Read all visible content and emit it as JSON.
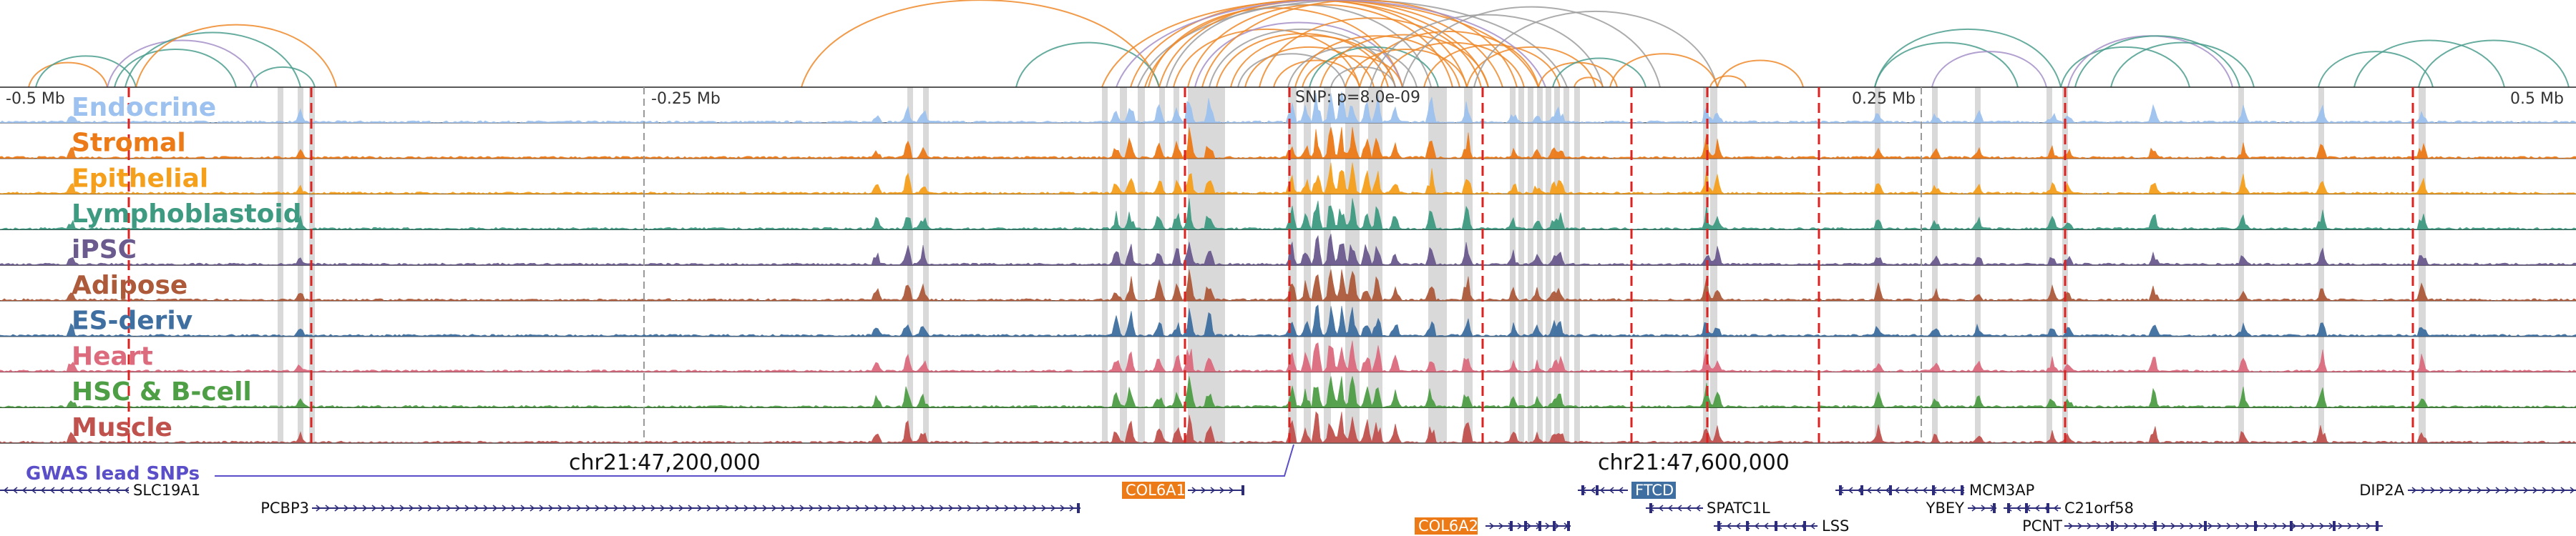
{
  "scale_labels": [
    "-0.5 Mb",
    "-0.25 Mb",
    "0.25 Mb",
    "0.5 Mb"
  ],
  "snp_label": "SNP: p=8.0e-09",
  "coordinate_labels": [
    "chr21:47,200,000",
    "chr21:47,600,000"
  ],
  "gwas_label": "GWAS lead SNPs",
  "tracks": [
    {
      "name": "Endocrine",
      "color": "#9ec2ef"
    },
    {
      "name": "Stromal",
      "color": "#ec7a17"
    },
    {
      "name": "Epithelial",
      "color": "#f5a01d"
    },
    {
      "name": "Lymphoblastoid",
      "color": "#3f9a82"
    },
    {
      "name": "iPSC",
      "color": "#6a5a8e"
    },
    {
      "name": "Adipose",
      "color": "#ad5a3a"
    },
    {
      "name": "ES-deriv",
      "color": "#3f6fa0"
    },
    {
      "name": "Heart",
      "color": "#dc6b7e"
    },
    {
      "name": "HSC & B-cell",
      "color": "#4e9e46"
    },
    {
      "name": "Muscle",
      "color": "#c0524e"
    }
  ],
  "genes": [
    {
      "name": "SLC19A1",
      "highlight": false,
      "color": ""
    },
    {
      "name": "PCBP3",
      "highlight": false,
      "color": ""
    },
    {
      "name": "COL6A1",
      "highlight": true,
      "color": "#ec7a17"
    },
    {
      "name": "COL6A2",
      "highlight": true,
      "color": "#ec7a17"
    },
    {
      "name": "FTCD",
      "highlight": true,
      "color": "#3f6fa0"
    },
    {
      "name": "SPATC1L",
      "highlight": false,
      "color": ""
    },
    {
      "name": "LSS",
      "highlight": false,
      "color": ""
    },
    {
      "name": "MCM3AP",
      "highlight": false,
      "color": ""
    },
    {
      "name": "YBEY",
      "highlight": false,
      "color": ""
    },
    {
      "name": "C21orf58",
      "highlight": false,
      "color": ""
    },
    {
      "name": "PCNT",
      "highlight": false,
      "color": ""
    },
    {
      "name": "DIP2A",
      "highlight": false,
      "color": ""
    }
  ],
  "colors": {
    "loop_orange": "#ef8a2a",
    "loop_teal": "#4b9e8e",
    "loop_gray": "#9e9e9e",
    "loop_purple": "#a58fc8",
    "gwas": "#5a4fc8",
    "red_dash": "#dd2222",
    "gray_dash": "#999999",
    "highlight": "#d9d9d9",
    "gene_line": "#2c2c7a"
  }
}
